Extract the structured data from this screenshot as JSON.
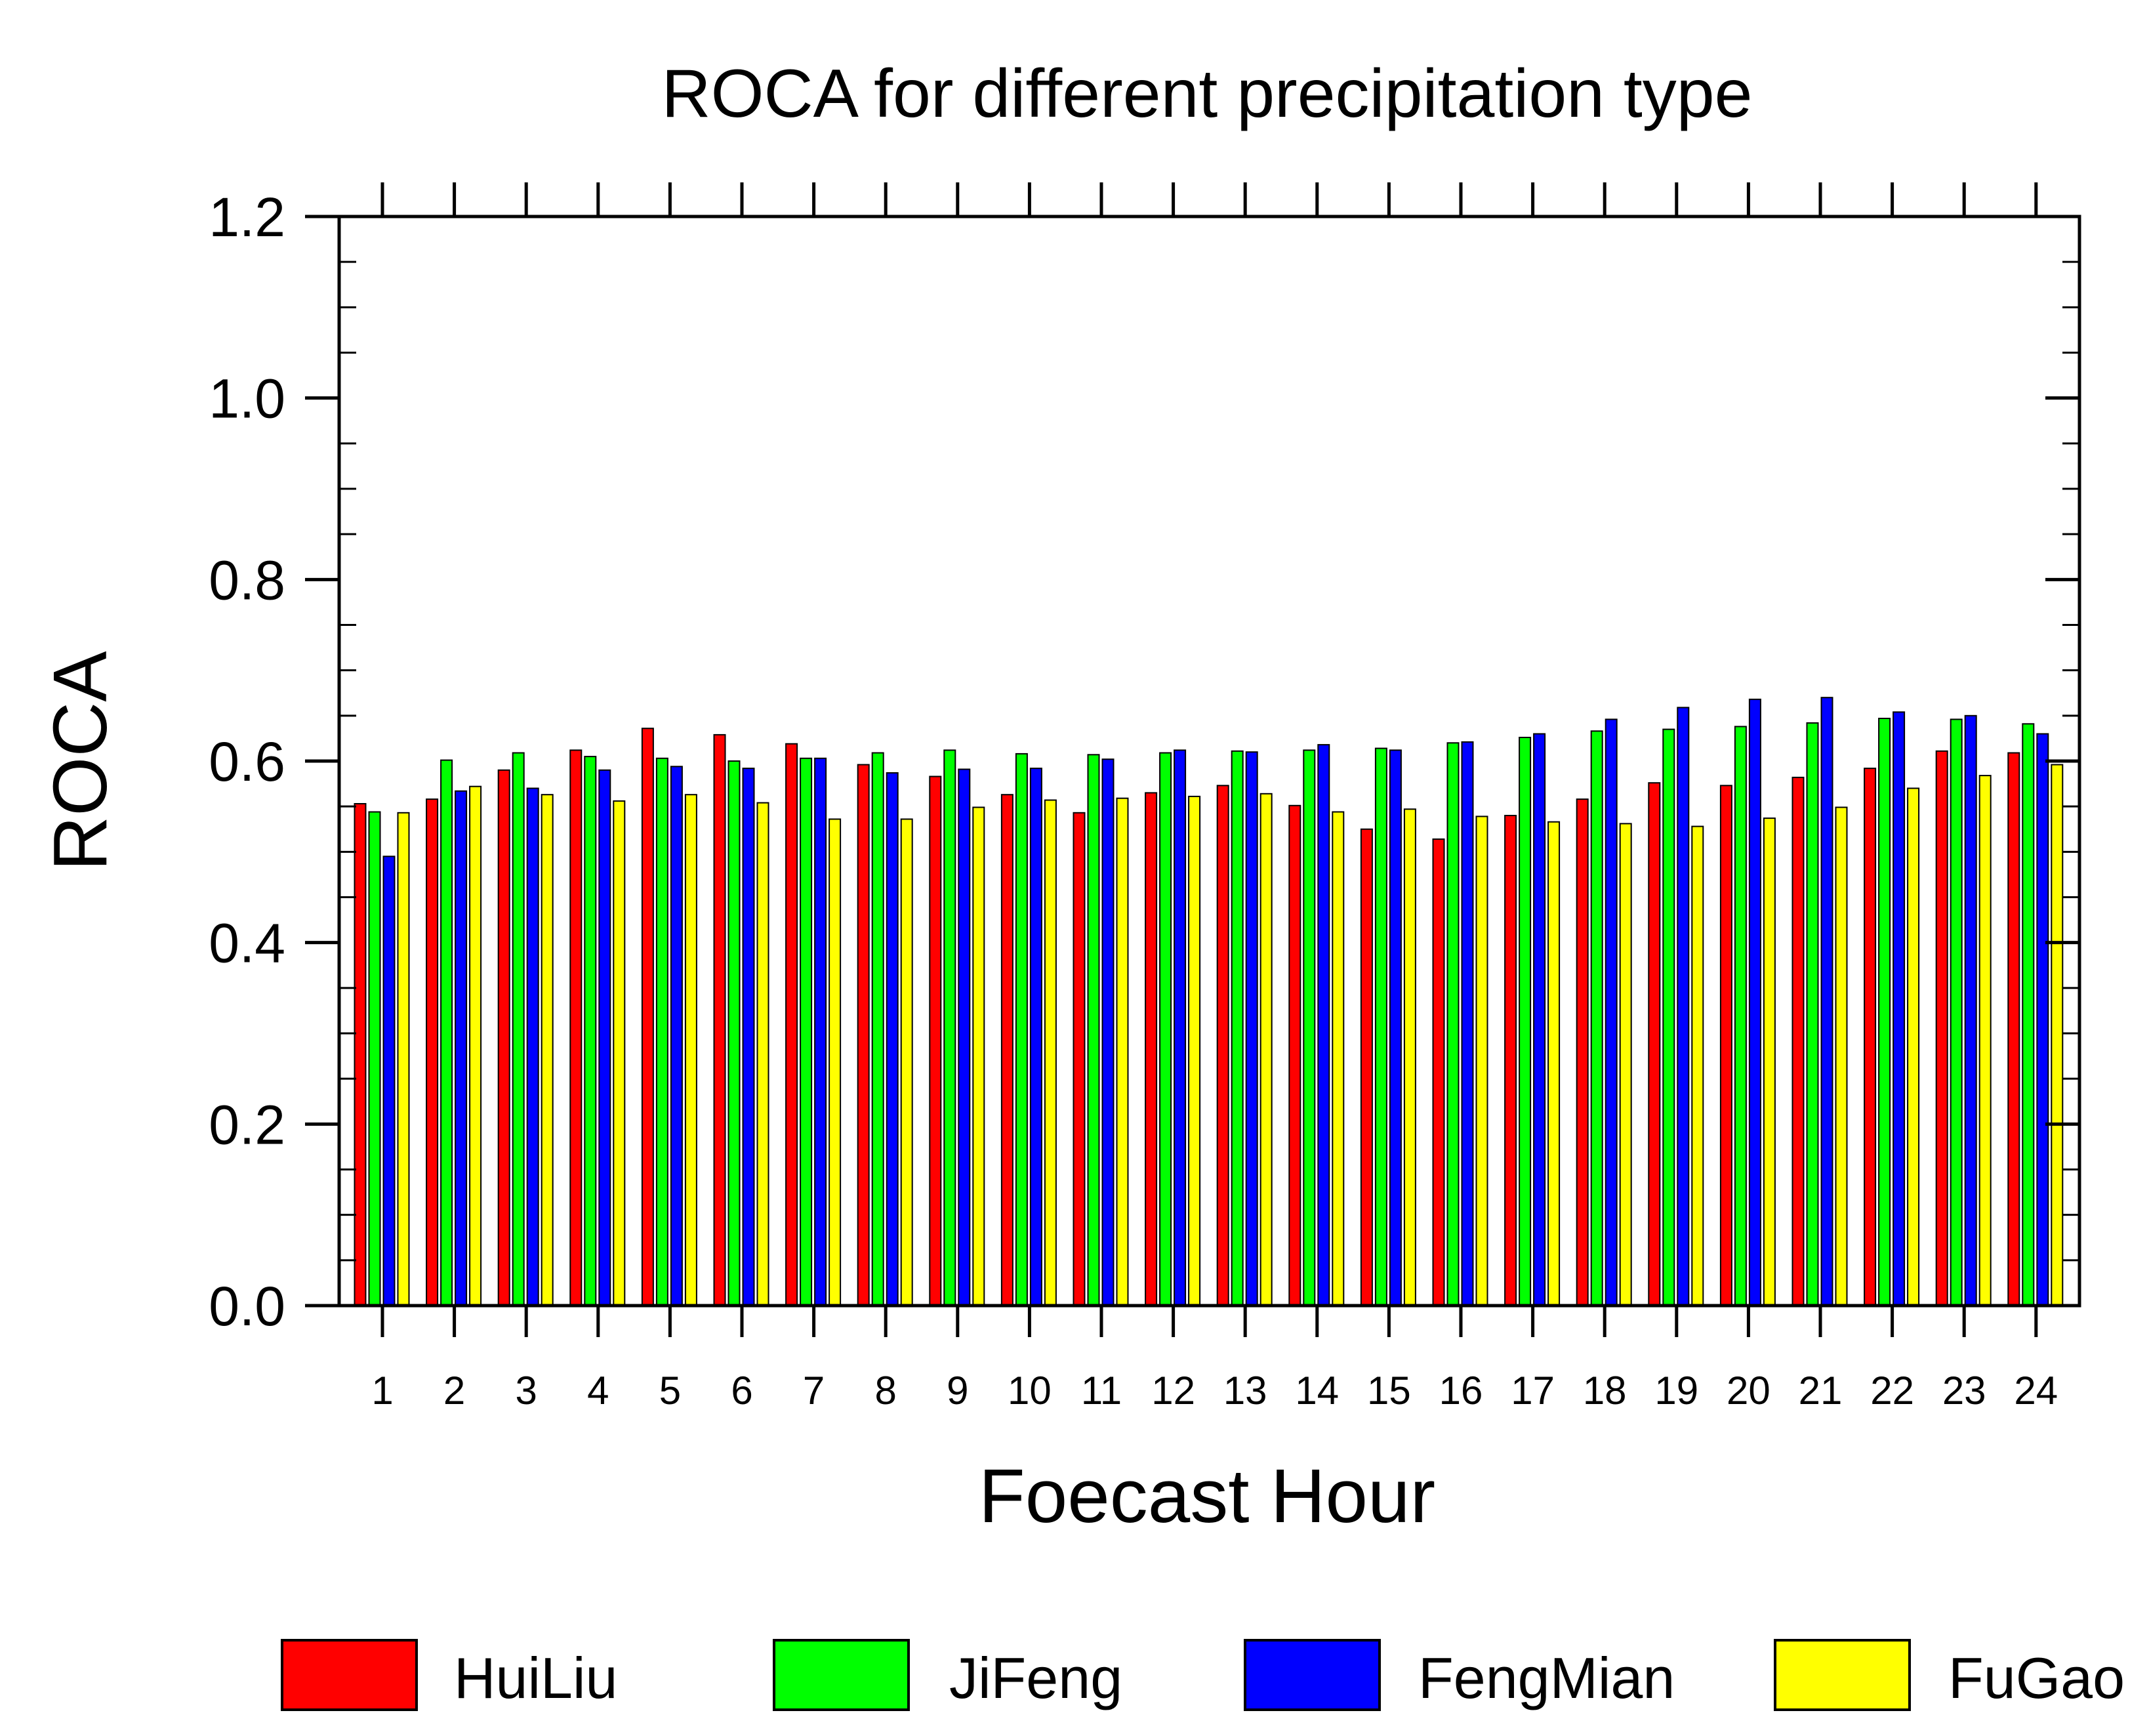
{
  "chart_data": {
    "type": "bar",
    "title": "ROCA for different precipitation type",
    "xlabel": "Foecast Hour",
    "ylabel": "ROCA",
    "ylim": [
      0,
      1.2
    ],
    "yticks": [
      "0.0",
      "0.2",
      "0.4",
      "0.6",
      "0.8",
      "1.0",
      "1.2"
    ],
    "categories": [
      "1",
      "2",
      "3",
      "4",
      "5",
      "6",
      "7",
      "8",
      "9",
      "10",
      "11",
      "12",
      "13",
      "14",
      "15",
      "16",
      "17",
      "18",
      "19",
      "20",
      "21",
      "22",
      "23",
      "24"
    ],
    "series": [
      {
        "name": "HuiLiu",
        "color": "#ff0000",
        "values": [
          0.553,
          0.558,
          0.59,
          0.612,
          0.636,
          0.629,
          0.619,
          0.596,
          0.583,
          0.563,
          0.543,
          0.565,
          0.573,
          0.551,
          0.525,
          0.514,
          0.54,
          0.558,
          0.576,
          0.573,
          0.582,
          0.592,
          0.611,
          0.609
        ]
      },
      {
        "name": "JiFeng",
        "color": "#00ff00",
        "values": [
          0.544,
          0.601,
          0.609,
          0.605,
          0.603,
          0.6,
          0.603,
          0.609,
          0.612,
          0.608,
          0.607,
          0.609,
          0.611,
          0.612,
          0.614,
          0.62,
          0.626,
          0.633,
          0.635,
          0.638,
          0.642,
          0.647,
          0.646,
          0.641
        ]
      },
      {
        "name": "FengMian",
        "color": "#0000ff",
        "values": [
          0.495,
          0.567,
          0.57,
          0.59,
          0.594,
          0.592,
          0.603,
          0.587,
          0.591,
          0.592,
          0.602,
          0.612,
          0.61,
          0.618,
          0.612,
          0.621,
          0.63,
          0.646,
          0.659,
          0.668,
          0.67,
          0.654,
          0.65,
          0.63
        ]
      },
      {
        "name": "FuGao",
        "color": "#ffff00",
        "values": [
          0.543,
          0.572,
          0.563,
          0.556,
          0.563,
          0.554,
          0.536,
          0.536,
          0.549,
          0.557,
          0.559,
          0.561,
          0.564,
          0.544,
          0.547,
          0.539,
          0.533,
          0.531,
          0.528,
          0.537,
          0.549,
          0.57,
          0.584,
          0.596
        ]
      }
    ],
    "legend": "bottom"
  }
}
